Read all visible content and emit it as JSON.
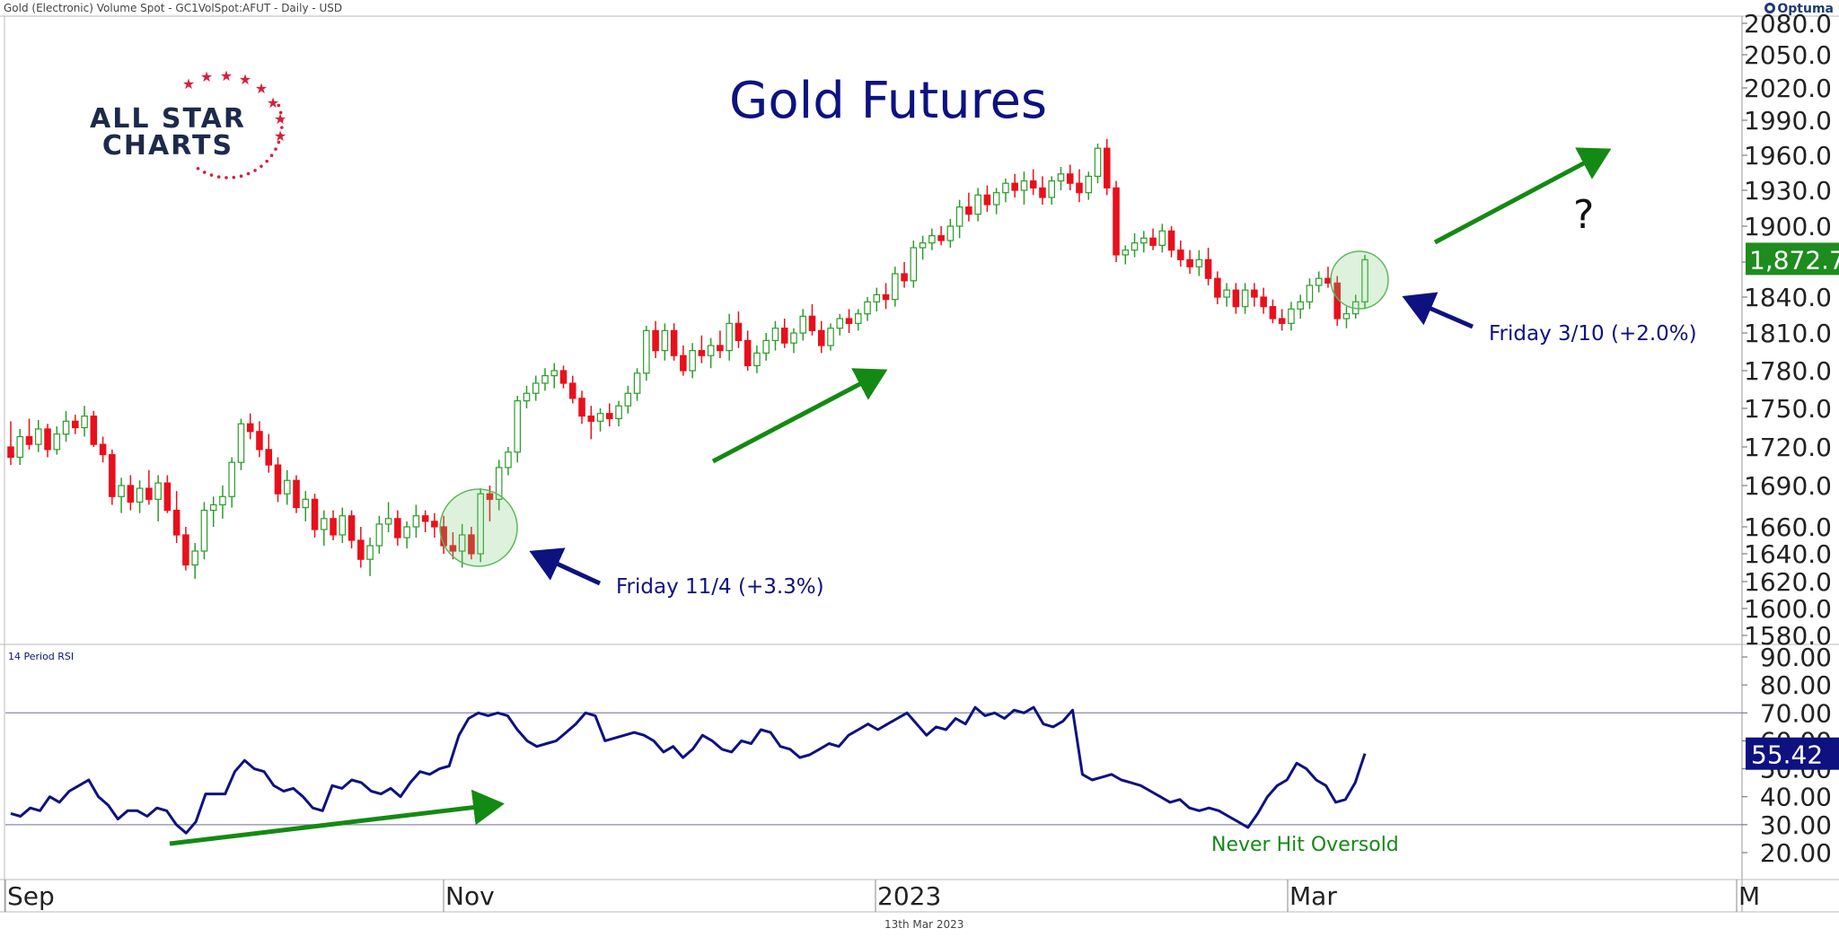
{
  "header": {
    "instrument": "Gold (Electronic) Volume Spot - GC1VolSpot:AFUT - Daily - USD",
    "brand": "Optuma"
  },
  "logo": {
    "line1": "ALL STAR",
    "line2": "CHARTS"
  },
  "footer": {
    "date": "13th Mar 2023"
  },
  "chart_data": {
    "type": "candlestick",
    "title": "Gold Futures",
    "price_axis": {
      "ticks": [
        "1580.0",
        "1600.0",
        "1620.0",
        "1640.0",
        "1660.0",
        "1690.0",
        "1720.0",
        "1750.0",
        "1780.0",
        "1810.0",
        "1840.0",
        "1870.0",
        "1900.0",
        "1930.0",
        "1960.0",
        "1990.0",
        "2020.0",
        "2050.0",
        "2080.0"
      ],
      "last_price_label": "1,872.7",
      "last_price": 1872.7,
      "last_price_color": "#1e8c1e"
    },
    "x_axis": {
      "labels": [
        "Sep",
        "Nov",
        "2023",
        "Mar",
        "M"
      ]
    },
    "up_color": "#2a9d2a",
    "down_color": "#e8101c",
    "candles": [
      [
        1720,
        1740,
        1706,
        1712
      ],
      [
        1712,
        1734,
        1706,
        1728
      ],
      [
        1728,
        1742,
        1718,
        1722
      ],
      [
        1722,
        1741,
        1716,
        1734
      ],
      [
        1734,
        1738,
        1712,
        1718
      ],
      [
        1718,
        1736,
        1714,
        1730
      ],
      [
        1730,
        1748,
        1724,
        1740
      ],
      [
        1740,
        1745,
        1730,
        1735
      ],
      [
        1735,
        1752,
        1728,
        1744
      ],
      [
        1744,
        1748,
        1720,
        1722
      ],
      [
        1722,
        1728,
        1708,
        1714
      ],
      [
        1714,
        1718,
        1676,
        1682
      ],
      [
        1682,
        1696,
        1670,
        1690
      ],
      [
        1690,
        1698,
        1672,
        1678
      ],
      [
        1678,
        1694,
        1670,
        1688
      ],
      [
        1688,
        1702,
        1676,
        1680
      ],
      [
        1680,
        1698,
        1664,
        1692
      ],
      [
        1692,
        1698,
        1670,
        1672
      ],
      [
        1672,
        1686,
        1648,
        1654
      ],
      [
        1654,
        1660,
        1628,
        1632
      ],
      [
        1632,
        1648,
        1622,
        1642
      ],
      [
        1642,
        1678,
        1636,
        1672
      ],
      [
        1672,
        1682,
        1660,
        1676
      ],
      [
        1676,
        1690,
        1666,
        1682
      ],
      [
        1682,
        1712,
        1674,
        1708
      ],
      [
        1708,
        1742,
        1702,
        1738
      ],
      [
        1738,
        1746,
        1726,
        1732
      ],
      [
        1732,
        1740,
        1712,
        1718
      ],
      [
        1718,
        1730,
        1700,
        1706
      ],
      [
        1706,
        1712,
        1678,
        1684
      ],
      [
        1684,
        1702,
        1676,
        1694
      ],
      [
        1694,
        1698,
        1670,
        1674
      ],
      [
        1674,
        1686,
        1664,
        1680
      ],
      [
        1680,
        1684,
        1652,
        1658
      ],
      [
        1658,
        1672,
        1646,
        1666
      ],
      [
        1666,
        1672,
        1650,
        1654
      ],
      [
        1654,
        1674,
        1648,
        1668
      ],
      [
        1668,
        1672,
        1644,
        1650
      ],
      [
        1650,
        1660,
        1630,
        1636
      ],
      [
        1636,
        1652,
        1624,
        1646
      ],
      [
        1646,
        1668,
        1640,
        1662
      ],
      [
        1662,
        1678,
        1656,
        1666
      ],
      [
        1666,
        1672,
        1646,
        1652
      ],
      [
        1652,
        1664,
        1644,
        1660
      ],
      [
        1660,
        1676,
        1652,
        1668
      ],
      [
        1668,
        1672,
        1656,
        1664
      ],
      [
        1664,
        1670,
        1652,
        1660
      ],
      [
        1660,
        1668,
        1640,
        1646
      ],
      [
        1646,
        1656,
        1636,
        1642
      ],
      [
        1642,
        1662,
        1630,
        1654
      ],
      [
        1654,
        1660,
        1636,
        1640
      ],
      [
        1640,
        1688,
        1634,
        1684
      ],
      [
        1684,
        1690,
        1664,
        1680
      ],
      [
        1680,
        1710,
        1672,
        1704
      ],
      [
        1704,
        1720,
        1698,
        1716
      ],
      [
        1716,
        1760,
        1708,
        1756
      ],
      [
        1756,
        1768,
        1750,
        1762
      ],
      [
        1762,
        1776,
        1756,
        1770
      ],
      [
        1770,
        1782,
        1764,
        1776
      ],
      [
        1776,
        1786,
        1766,
        1780
      ],
      [
        1780,
        1784,
        1766,
        1770
      ],
      [
        1770,
        1776,
        1754,
        1758
      ],
      [
        1758,
        1764,
        1738,
        1744
      ],
      [
        1744,
        1752,
        1726,
        1740
      ],
      [
        1740,
        1750,
        1732,
        1746
      ],
      [
        1746,
        1754,
        1736,
        1742
      ],
      [
        1742,
        1756,
        1736,
        1752
      ],
      [
        1752,
        1768,
        1746,
        1762
      ],
      [
        1762,
        1782,
        1756,
        1778
      ],
      [
        1778,
        1816,
        1772,
        1812
      ],
      [
        1812,
        1820,
        1790,
        1796
      ],
      [
        1796,
        1818,
        1788,
        1812
      ],
      [
        1812,
        1818,
        1788,
        1792
      ],
      [
        1792,
        1800,
        1776,
        1780
      ],
      [
        1780,
        1802,
        1774,
        1796
      ],
      [
        1796,
        1808,
        1786,
        1792
      ],
      [
        1792,
        1806,
        1782,
        1800
      ],
      [
        1800,
        1812,
        1790,
        1796
      ],
      [
        1796,
        1826,
        1788,
        1818
      ],
      [
        1818,
        1828,
        1798,
        1804
      ],
      [
        1804,
        1812,
        1780,
        1784
      ],
      [
        1784,
        1800,
        1778,
        1794
      ],
      [
        1794,
        1810,
        1788,
        1804
      ],
      [
        1804,
        1820,
        1796,
        1814
      ],
      [
        1814,
        1822,
        1798,
        1802
      ],
      [
        1802,
        1814,
        1794,
        1810
      ],
      [
        1810,
        1830,
        1804,
        1824
      ],
      [
        1824,
        1834,
        1808,
        1812
      ],
      [
        1812,
        1820,
        1794,
        1800
      ],
      [
        1800,
        1818,
        1796,
        1814
      ],
      [
        1814,
        1826,
        1808,
        1822
      ],
      [
        1822,
        1830,
        1810,
        1818
      ],
      [
        1818,
        1830,
        1812,
        1826
      ],
      [
        1826,
        1840,
        1820,
        1836
      ],
      [
        1836,
        1848,
        1828,
        1842
      ],
      [
        1842,
        1852,
        1830,
        1838
      ],
      [
        1838,
        1866,
        1832,
        1860
      ],
      [
        1860,
        1870,
        1848,
        1854
      ],
      [
        1854,
        1888,
        1848,
        1882
      ],
      [
        1882,
        1892,
        1872,
        1886
      ],
      [
        1886,
        1898,
        1880,
        1892
      ],
      [
        1892,
        1900,
        1884,
        1888
      ],
      [
        1888,
        1906,
        1882,
        1900
      ],
      [
        1900,
        1922,
        1890,
        1916
      ],
      [
        1916,
        1928,
        1904,
        1910
      ],
      [
        1910,
        1932,
        1904,
        1926
      ],
      [
        1926,
        1934,
        1912,
        1918
      ],
      [
        1918,
        1932,
        1910,
        1928
      ],
      [
        1928,
        1940,
        1920,
        1936
      ],
      [
        1936,
        1944,
        1924,
        1930
      ],
      [
        1930,
        1946,
        1918,
        1938
      ],
      [
        1938,
        1948,
        1926,
        1932
      ],
      [
        1932,
        1942,
        1918,
        1924
      ],
      [
        1924,
        1942,
        1918,
        1938
      ],
      [
        1938,
        1950,
        1930,
        1944
      ],
      [
        1944,
        1952,
        1930,
        1936
      ],
      [
        1936,
        1948,
        1920,
        1928
      ],
      [
        1928,
        1946,
        1922,
        1942
      ],
      [
        1942,
        1970,
        1936,
        1966
      ],
      [
        1966,
        1974,
        1926,
        1932
      ],
      [
        1932,
        1938,
        1870,
        1876
      ],
      [
        1876,
        1884,
        1868,
        1880
      ],
      [
        1880,
        1894,
        1874,
        1886
      ],
      [
        1886,
        1896,
        1878,
        1890
      ],
      [
        1890,
        1898,
        1880,
        1884
      ],
      [
        1884,
        1902,
        1878,
        1896
      ],
      [
        1896,
        1900,
        1874,
        1880
      ],
      [
        1880,
        1888,
        1866,
        1872
      ],
      [
        1872,
        1880,
        1860,
        1866
      ],
      [
        1866,
        1880,
        1858,
        1872
      ],
      [
        1872,
        1882,
        1850,
        1856
      ],
      [
        1856,
        1862,
        1834,
        1840
      ],
      [
        1840,
        1852,
        1832,
        1846
      ],
      [
        1846,
        1852,
        1826,
        1832
      ],
      [
        1832,
        1852,
        1826,
        1846
      ],
      [
        1846,
        1852,
        1832,
        1840
      ],
      [
        1840,
        1848,
        1826,
        1832
      ],
      [
        1832,
        1838,
        1818,
        1822
      ],
      [
        1822,
        1830,
        1812,
        1818
      ],
      [
        1818,
        1836,
        1812,
        1830
      ],
      [
        1830,
        1842,
        1822,
        1836
      ],
      [
        1836,
        1856,
        1830,
        1850
      ],
      [
        1850,
        1862,
        1844,
        1856
      ],
      [
        1856,
        1866,
        1848,
        1852
      ],
      [
        1852,
        1858,
        1816,
        1822
      ],
      [
        1822,
        1832,
        1814,
        1826
      ],
      [
        1826,
        1842,
        1822,
        1836
      ],
      [
        1836,
        1876,
        1830,
        1872
      ]
    ],
    "rsi": {
      "label": "14 Period RSI",
      "ticks": [
        "20.00",
        "30.00",
        "40.00",
        "50.00",
        "60.00",
        "70.00",
        "80.00",
        "90.00"
      ],
      "overbought": 70,
      "oversold": 30,
      "last_label": "55.42",
      "last_value": 55.42,
      "last_color": "#0d1280",
      "values": [
        34,
        33,
        36,
        35,
        40,
        38,
        42,
        44,
        46,
        40,
        37,
        32,
        35,
        35,
        33,
        36,
        35,
        30,
        27,
        31,
        41,
        41,
        41,
        49,
        53,
        50,
        49,
        44,
        42,
        43,
        40,
        36,
        35,
        44,
        43,
        46,
        45,
        42,
        41,
        43,
        40,
        45,
        49,
        48,
        50,
        51,
        62,
        68,
        70,
        69,
        70,
        69,
        64,
        60,
        58,
        59,
        60,
        63,
        66,
        70,
        69,
        60,
        61,
        62,
        63,
        62,
        60,
        56,
        58,
        54,
        57,
        62,
        60,
        57,
        56,
        60,
        59,
        64,
        63,
        58,
        57,
        54,
        55,
        57,
        59,
        58,
        62,
        64,
        66,
        64,
        66,
        68,
        70,
        66,
        62,
        65,
        64,
        68,
        66,
        72,
        69,
        70,
        68,
        71,
        70,
        72,
        66,
        65,
        67,
        71,
        48,
        46,
        47,
        48,
        46,
        45,
        44,
        42,
        40,
        38,
        39,
        36,
        35,
        36,
        35,
        33,
        31,
        29,
        34,
        40,
        44,
        46,
        52,
        50,
        46,
        44,
        38,
        39,
        45,
        55.42
      ]
    },
    "annotations": [
      {
        "text": "Friday 11/4 (+3.3%)"
      },
      {
        "text": "Friday 3/10 (+2.0%)"
      },
      {
        "text": "Never Hit Oversold"
      },
      {
        "text": "?"
      }
    ]
  }
}
